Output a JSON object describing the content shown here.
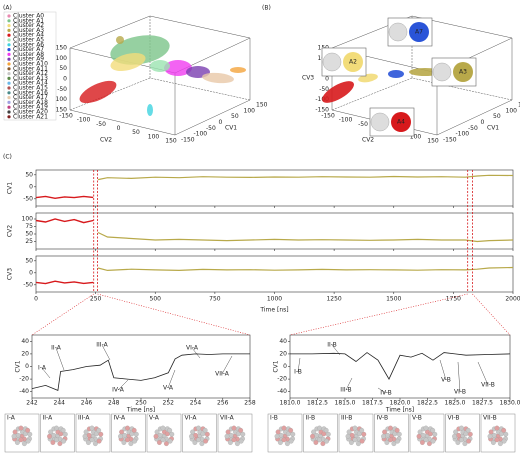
{
  "panels": {
    "a": "(A)",
    "b": "(B)",
    "c": "(C)"
  },
  "legend": {
    "entries": [
      "Cluster A0",
      "Cluster A1",
      "Cluster A2",
      "Cluster A3",
      "Cluster A4",
      "Cluster A5",
      "Cluster A6",
      "Cluster A7",
      "Cluster A8",
      "Cluster A9",
      "Cluster A10",
      "Cluster A11",
      "Cluster A12",
      "Cluster A13",
      "Cluster A14",
      "Cluster A15",
      "Cluster A16",
      "Cluster A17",
      "Cluster A18",
      "Cluster A19",
      "Cluster A20",
      "Cluster A21"
    ],
    "colors": [
      "#e88ab0",
      "#7cc48a",
      "#f2dc7a",
      "#b8a94a",
      "#d7191c",
      "#9be3b0",
      "#3fd3e0",
      "#2a54d8",
      "#f03cf0",
      "#7b3fb0",
      "#f4a43c",
      "#8a5a2c",
      "#c7c7c7",
      "#5c8a4a",
      "#6ab7e8",
      "#b05050",
      "#4a8a8a",
      "#e8c8a8",
      "#a0a0e0",
      "#c04080",
      "#404040",
      "#802020"
    ]
  },
  "panel_a": {
    "axes": [
      "CV1",
      "CV2",
      "CV3"
    ],
    "cv3_ticks": [
      150,
      100,
      50,
      0,
      -50,
      -100,
      -150
    ],
    "cv2_ticks": [
      -150,
      -100,
      -50,
      0,
      50,
      100,
      150
    ],
    "cv1_ticks": [
      -150,
      -100,
      -50,
      0,
      50,
      100,
      150
    ]
  },
  "panel_b": {
    "axes": [
      "CV1",
      "CV2",
      "CV3"
    ],
    "cv3_ticks": [
      150,
      100,
      50,
      0,
      -50,
      -100,
      -150
    ],
    "cv2_ticks": [
      -150,
      -100,
      -50,
      0,
      50,
      100,
      150
    ],
    "cv1_ticks": [
      -150,
      -100,
      -50,
      0,
      50,
      100,
      150
    ],
    "callouts": [
      "A2",
      "A7",
      "A3",
      "A4"
    ]
  },
  "panel_c": {
    "xlabel": "Time [ns]",
    "xlim": [
      0,
      2000
    ],
    "xticks": [
      0,
      250,
      500,
      750,
      1000,
      1250,
      1500,
      1750,
      2000
    ],
    "x": [
      0,
      40,
      80,
      120,
      160,
      200,
      240,
      260,
      300,
      400,
      500,
      600,
      700,
      800,
      900,
      1000,
      1100,
      1200,
      1300,
      1400,
      1500,
      1600,
      1700,
      1800,
      1850,
      1900,
      2000
    ],
    "rows": [
      {
        "label": "CV1",
        "ylim": [
          -80,
          70
        ],
        "yticks": [
          -50,
          0,
          50
        ],
        "series": [
          {
            "color": "#d7191c",
            "values": [
              -45,
              -40,
              -48,
              -42,
              -45,
              -40,
              -44,
              null,
              null,
              null,
              null,
              null,
              null,
              null,
              null,
              null,
              null,
              null,
              null,
              null,
              null,
              null,
              null,
              null,
              null,
              null,
              null
            ]
          },
          {
            "color": "#b8a94a",
            "values": [
              null,
              null,
              null,
              null,
              null,
              null,
              null,
              30,
              38,
              35,
              40,
              38,
              42,
              40,
              39,
              41,
              40,
              42,
              41,
              40,
              43,
              41,
              42,
              40,
              45,
              48,
              47
            ]
          }
        ]
      },
      {
        "label": "CV2",
        "ylim": [
          0,
          120
        ],
        "yticks": [
          25,
          50,
          75,
          100
        ],
        "series": [
          {
            "color": "#d7191c",
            "values": [
              95,
              90,
              100,
              92,
              98,
              88,
              95,
              null,
              null,
              null,
              null,
              null,
              null,
              null,
              null,
              null,
              null,
              null,
              null,
              null,
              null,
              null,
              null,
              null,
              null,
              null,
              null
            ]
          },
          {
            "color": "#b8a94a",
            "values": [
              null,
              null,
              null,
              null,
              null,
              null,
              null,
              55,
              40,
              35,
              30,
              32,
              30,
              28,
              30,
              32,
              30,
              31,
              30,
              29,
              30,
              32,
              30,
              30,
              25,
              28,
              30
            ]
          }
        ]
      },
      {
        "label": "CV3",
        "ylim": [
          -80,
          70
        ],
        "yticks": [
          -50,
          0,
          50
        ],
        "series": [
          {
            "color": "#d7191c",
            "values": [
              -40,
              -45,
              -35,
              -42,
              -38,
              -44,
              -40,
              null,
              null,
              null,
              null,
              null,
              null,
              null,
              null,
              null,
              null,
              null,
              null,
              null,
              null,
              null,
              null,
              null,
              null,
              null,
              null
            ]
          },
          {
            "color": "#b8a94a",
            "values": [
              null,
              null,
              null,
              null,
              null,
              null,
              null,
              20,
              10,
              15,
              12,
              10,
              14,
              12,
              13,
              11,
              12,
              14,
              12,
              13,
              12,
              11,
              13,
              12,
              15,
              20,
              22
            ]
          }
        ]
      }
    ]
  },
  "zoom_left": {
    "ylabel": "CV1",
    "xlabel": "Time [ns]",
    "xlim": [
      242,
      258
    ],
    "xticks": [
      242,
      244,
      246,
      248,
      250,
      252,
      254,
      256,
      258
    ],
    "ylim": [
      -50,
      50
    ],
    "yticks": [
      -40,
      -20,
      0,
      20,
      40
    ],
    "x": [
      242,
      243,
      243.9,
      244.1,
      245,
      246,
      247,
      247.6,
      248,
      249,
      250,
      251,
      252,
      252.5,
      253,
      254,
      255,
      256,
      258
    ],
    "values": [
      -35,
      -30,
      -38,
      -8,
      -5,
      0,
      2,
      10,
      -18,
      -20,
      -22,
      -18,
      -10,
      12,
      18,
      20,
      19,
      20,
      20
    ],
    "color": "#222222",
    "labels": [
      "I-A",
      "II-A",
      "III-A",
      "IV-A",
      "V-A",
      "VI-A",
      "VII-A"
    ]
  },
  "zoom_right": {
    "ylabel": "CV1",
    "xlabel": "Time [ns]",
    "xlim": [
      1810,
      1830
    ],
    "xticks": [
      {
        "value": 1810,
        "label": "1810.0"
      },
      {
        "value": 1812.5,
        "label": "1812.5"
      },
      {
        "value": 1815,
        "label": "1815.0"
      },
      {
        "value": 1817.5,
        "label": "1817.5"
      },
      {
        "value": 1820,
        "label": "1820.0"
      },
      {
        "value": 1822.5,
        "label": "1822.5"
      },
      {
        "value": 1825,
        "label": "1825.0"
      },
      {
        "value": 1827.5,
        "label": "1827.5"
      },
      {
        "value": 1830,
        "label": "1830.0"
      }
    ],
    "ylim": [
      -50,
      50
    ],
    "yticks": [
      -40,
      -20,
      0,
      20,
      40
    ],
    "x": [
      1810,
      1812,
      1814,
      1815,
      1816,
      1817,
      1818,
      1819,
      1820,
      1821,
      1822,
      1823,
      1824,
      1825,
      1826,
      1828,
      1830
    ],
    "values": [
      20,
      20,
      21,
      20,
      8,
      22,
      10,
      -20,
      18,
      15,
      21,
      10,
      22,
      20,
      18,
      19,
      20
    ],
    "color": "#222222",
    "labels": [
      "I-B",
      "II-B",
      "III-B",
      "IV-B",
      "V-B",
      "VI-B",
      "VII-B"
    ]
  },
  "thumbnails_left": [
    "I-A",
    "II-A",
    "III-A",
    "IV-A",
    "V-A",
    "VI-A",
    "VII-A"
  ],
  "thumbnails_right": [
    "I-B",
    "II-B",
    "III-B",
    "IV-B",
    "V-B",
    "VI-B",
    "VII-B"
  ]
}
